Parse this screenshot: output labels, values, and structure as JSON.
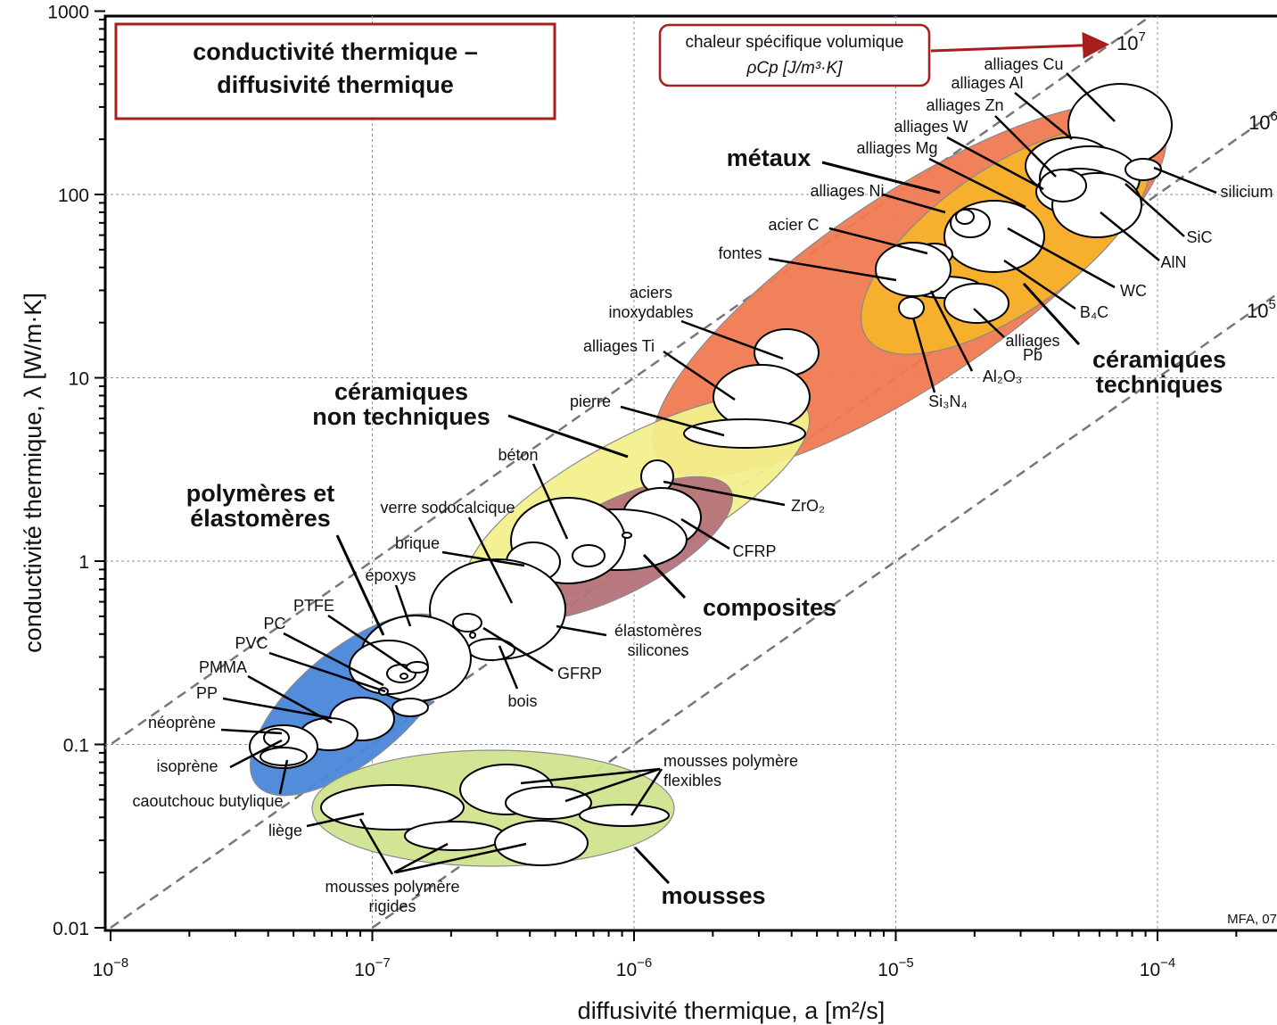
{
  "chart_data": {
    "type": "scatter",
    "title": "conductivité thermique – diffusivité thermique",
    "title_lines": [
      "conductivité thermique –",
      "diffusivité thermique"
    ],
    "xlabel": "diffusivité thermique, a [m²/s]",
    "ylabel": "conductivité thermique, λ [W/m·K]",
    "x_scale": "log",
    "y_scale": "log",
    "xlim": [
      1e-08,
      0.0001
    ],
    "ylim": [
      0.01,
      1000
    ],
    "grid": true,
    "credit": "MFA, 07",
    "x_ticks": [
      {
        "value": 1e-08,
        "base": "10",
        "exp": "−8"
      },
      {
        "value": 1e-07,
        "base": "10",
        "exp": "−7"
      },
      {
        "value": 1e-06,
        "base": "10",
        "exp": "−6"
      },
      {
        "value": 1e-05,
        "base": "10",
        "exp": "−5"
      },
      {
        "value": 0.0001,
        "base": "10",
        "exp": "−4"
      }
    ],
    "y_ticks": [
      {
        "value": 0.01,
        "label": "0.01"
      },
      {
        "value": 0.1,
        "label": "0.1"
      },
      {
        "value": 1,
        "label": "1"
      },
      {
        "value": 10,
        "label": "10"
      },
      {
        "value": 100,
        "label": "100"
      },
      {
        "value": 1000,
        "label": "1000"
      }
    ],
    "guide_lines": {
      "title_line1": "chaleur spécifique volumique",
      "title_line2": "ρCp  [J/m³·K]",
      "lines": [
        {
          "rhoCp": 10000000,
          "label": "10",
          "exp": "7"
        },
        {
          "rhoCp": 1000000,
          "label": "10",
          "exp": "6"
        },
        {
          "rhoCp": 100000,
          "label": "10",
          "exp": "5"
        }
      ]
    },
    "families": [
      {
        "name": "métaux",
        "color": "#f07a52",
        "a": 1.2e-05,
        "lambda": 40
      },
      {
        "name": "céramiques techniques",
        "color": "#f5b22c",
        "a": 1.6e-05,
        "lambda": 40
      },
      {
        "name": "céramiques non techniques",
        "color": "#f2f08c",
        "a": 1.6e-06,
        "lambda": 3
      },
      {
        "name": "composites",
        "color": "#b5727a",
        "a": 8e-07,
        "lambda": 1.5
      },
      {
        "name": "polymères et élastomères",
        "color": "#4a86d8",
        "a": 9e-08,
        "lambda": 0.3
      },
      {
        "name": "mousses",
        "color": "#cfe48f",
        "a": 3e-07,
        "lambda": 0.04
      }
    ],
    "materials": [
      {
        "name": "alliages Cu",
        "a": 5e-05,
        "lambda": 250
      },
      {
        "name": "alliages Al",
        "a": 5e-05,
        "lambda": 150
      },
      {
        "name": "alliages Zn",
        "a": 4e-05,
        "lambda": 110
      },
      {
        "name": "alliages W",
        "a": 6e-05,
        "lambda": 160
      },
      {
        "name": "alliages Mg",
        "a": 7e-05,
        "lambda": 120
      },
      {
        "name": "alliages Ni",
        "a": 1.8e-05,
        "lambda": 70
      },
      {
        "name": "acier C",
        "a": 1.3e-05,
        "lambda": 50
      },
      {
        "name": "fontes",
        "a": 1e-05,
        "lambda": 40
      },
      {
        "name": "aciers inoxydables",
        "a": 4e-06,
        "lambda": 15
      },
      {
        "name": "alliages Ti",
        "a": 2.8e-06,
        "lambda": 8
      },
      {
        "name": "pierre",
        "a": 2e-06,
        "lambda": 5
      },
      {
        "name": "béton",
        "a": 4e-07,
        "lambda": 1.4
      },
      {
        "name": "brique",
        "a": 3.5e-07,
        "lambda": 1
      },
      {
        "name": "verre sodocalcique",
        "a": 4e-07,
        "lambda": 1
      },
      {
        "name": "ZrO₂",
        "a": 1.2e-06,
        "lambda": 2.5
      },
      {
        "name": "CFRP",
        "a": 1e-06,
        "lambda": 2
      },
      {
        "name": "GFRP",
        "a": 3e-07,
        "lambda": 0.4
      },
      {
        "name": "élastomères silicones",
        "a": 3e-07,
        "lambda": 0.3
      },
      {
        "name": "bois",
        "a": 2.5e-07,
        "lambda": 0.2
      },
      {
        "name": "époxys",
        "a": 1.3e-07,
        "lambda": 0.25
      },
      {
        "name": "PTFE",
        "a": 1.1e-07,
        "lambda": 0.25
      },
      {
        "name": "PC",
        "a": 1.1e-07,
        "lambda": 0.2
      },
      {
        "name": "PVC",
        "a": 1e-07,
        "lambda": 0.18
      },
      {
        "name": "PMMA",
        "a": 1e-07,
        "lambda": 0.2
      },
      {
        "name": "PP",
        "a": 9e-08,
        "lambda": 0.15
      },
      {
        "name": "néoprène",
        "a": 5e-08,
        "lambda": 0.12
      },
      {
        "name": "isoprène",
        "a": 4e-08,
        "lambda": 0.11
      },
      {
        "name": "caoutchouc butylique",
        "a": 4.5e-08,
        "lambda": 0.09
      },
      {
        "name": "liège",
        "a": 1e-07,
        "lambda": 0.045
      },
      {
        "name": "mousses polymère rigides",
        "a": 2.5e-07,
        "lambda": 0.03
      },
      {
        "name": "mousses polymère flexibles",
        "a": 6e-07,
        "lambda": 0.04
      },
      {
        "name": "silicium",
        "a": 8e-05,
        "lambda": 150
      },
      {
        "name": "SiC",
        "a": 6e-05,
        "lambda": 120
      },
      {
        "name": "AlN",
        "a": 8e-05,
        "lambda": 140
      },
      {
        "name": "WC",
        "a": 3e-05,
        "lambda": 80
      },
      {
        "name": "B₄C",
        "a": 2e-05,
        "lambda": 50
      },
      {
        "name": "alliages Pb",
        "a": 2.5e-05,
        "lambda": 35
      },
      {
        "name": "Al₂O₃",
        "a": 1.2e-05,
        "lambda": 30
      },
      {
        "name": "Si₃N₄",
        "a": 1.2e-05,
        "lambda": 25
      }
    ]
  }
}
